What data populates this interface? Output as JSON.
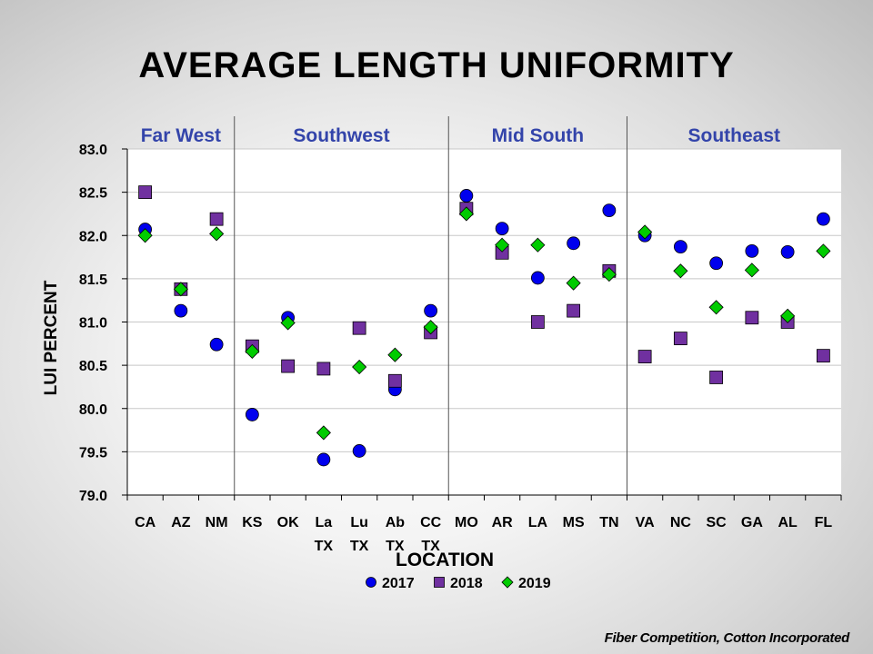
{
  "chart_data": {
    "type": "scatter",
    "title": "AVERAGE LENGTH UNIFORMITY",
    "xlabel": "LOCATION",
    "ylabel": "LUI PERCENT",
    "ylim": [
      79.0,
      83.0
    ],
    "yticks": [
      "79.0",
      "79.5",
      "80.0",
      "80.5",
      "81.0",
      "81.5",
      "82.0",
      "82.5",
      "83.0"
    ],
    "categories": [
      [
        "CA"
      ],
      [
        "AZ"
      ],
      [
        "NM"
      ],
      [
        "KS"
      ],
      [
        "OK"
      ],
      [
        "La",
        "TX"
      ],
      [
        "Lu",
        "TX"
      ],
      [
        "Ab",
        "TX"
      ],
      [
        "CC",
        "TX"
      ],
      [
        "MO"
      ],
      [
        "AR"
      ],
      [
        "LA"
      ],
      [
        "MS"
      ],
      [
        "TN"
      ],
      [
        "VA"
      ],
      [
        "NC"
      ],
      [
        "SC"
      ],
      [
        "GA"
      ],
      [
        "AL"
      ],
      [
        "FL"
      ]
    ],
    "regions": [
      {
        "name": "Far West",
        "start": 0,
        "end": 2
      },
      {
        "name": "Southwest",
        "start": 3,
        "end": 8
      },
      {
        "name": "Mid South",
        "start": 9,
        "end": 13
      },
      {
        "name": "Southeast",
        "start": 14,
        "end": 19
      }
    ],
    "series": [
      {
        "name": "2017",
        "marker": "circle",
        "color": "#0000ee",
        "values": [
          82.07,
          81.13,
          80.74,
          79.93,
          81.05,
          79.41,
          79.51,
          80.22,
          81.13,
          82.46,
          82.08,
          81.51,
          81.91,
          82.29,
          82.0,
          81.87,
          81.68,
          81.82,
          81.81,
          82.19
        ]
      },
      {
        "name": "2018",
        "marker": "square",
        "color": "#7030a0",
        "values": [
          82.5,
          81.38,
          82.19,
          80.72,
          80.49,
          80.46,
          80.93,
          80.32,
          80.88,
          82.31,
          81.8,
          81.0,
          81.13,
          81.59,
          80.6,
          80.81,
          80.36,
          81.05,
          81.0,
          80.61
        ]
      },
      {
        "name": "2019",
        "marker": "diamond",
        "color": "#00cc00",
        "values": [
          82.0,
          81.38,
          82.02,
          80.66,
          80.99,
          79.72,
          80.48,
          80.62,
          80.94,
          82.25,
          81.89,
          81.89,
          81.45,
          81.55,
          82.04,
          81.59,
          81.17,
          81.6,
          81.07,
          81.82
        ]
      }
    ],
    "legend": "bottom",
    "grid": "horizontal"
  },
  "footer": "Fiber Competition, Cotton Incorporated",
  "colors": {
    "region_label": "#3344aa",
    "plot_bg": "#ffffff",
    "grid": "#c8c8c8"
  }
}
